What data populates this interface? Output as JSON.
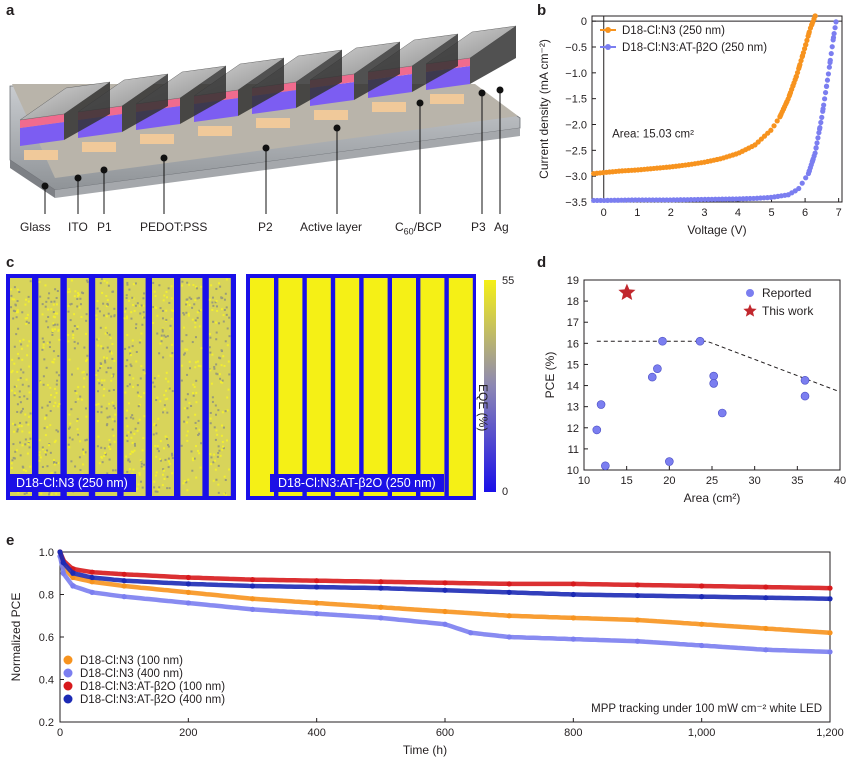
{
  "panel_labels": [
    "a",
    "b",
    "c",
    "d",
    "e"
  ],
  "panel_a": {
    "layers": [
      "Glass",
      "ITO",
      "P1",
      "PEDOT:PSS",
      "P2",
      "Active layer",
      "C60/BCP",
      "P3",
      "Ag"
    ]
  },
  "panel_c": {
    "left_label": "D18-Cl:N3 (250 nm)",
    "right_label": "D18-Cl:N3:AT-β2O (250 nm)",
    "colorbar_title": "EQE (%)",
    "colorbar_max": "55",
    "colorbar_min": "0",
    "colors": {
      "low": "#1a0fe8",
      "high": "#f5f016"
    }
  },
  "chart_data": [
    {
      "panel": "b",
      "type": "line",
      "xlabel": "Voltage (V)",
      "ylabel": "Current density (mA cm⁻²)",
      "xlim": [
        -0.35,
        7.1
      ],
      "ylim": [
        -3.5,
        0.1
      ],
      "xticks": [
        0,
        1,
        2,
        3,
        4,
        5,
        6,
        7
      ],
      "yticks": [
        0,
        -0.5,
        -1.0,
        -1.5,
        -2.0,
        -2.5,
        -3.0,
        -3.5
      ],
      "annotation": "Area: 15.03 cm²",
      "legend_position": "top-left",
      "series": [
        {
          "name": "D18-Cl:N3 (250 nm)",
          "color": "#f7931e",
          "x": [
            -0.3,
            0,
            0.5,
            1,
            1.5,
            2,
            2.5,
            3,
            3.5,
            4,
            4.5,
            5,
            5.25,
            5.5,
            5.75,
            6.0,
            6.15,
            6.3
          ],
          "y": [
            -2.95,
            -2.93,
            -2.9,
            -2.88,
            -2.85,
            -2.82,
            -2.78,
            -2.73,
            -2.66,
            -2.56,
            -2.4,
            -2.1,
            -1.85,
            -1.5,
            -1.05,
            -0.5,
            -0.15,
            0.1
          ]
        },
        {
          "name": "D18-Cl:N3:AT-β2O (250 nm)",
          "color": "#7b7ef0",
          "x": [
            -0.3,
            0,
            1,
            2,
            3,
            4,
            4.5,
            5,
            5.5,
            5.8,
            6.1,
            6.3,
            6.5,
            6.7,
            6.85,
            6.95
          ],
          "y": [
            -3.47,
            -3.47,
            -3.46,
            -3.46,
            -3.45,
            -3.44,
            -3.43,
            -3.41,
            -3.36,
            -3.25,
            -2.95,
            -2.55,
            -1.85,
            -1.0,
            -0.3,
            0.1
          ]
        }
      ]
    },
    {
      "panel": "d",
      "type": "scatter",
      "xlabel": "Area (cm²)",
      "ylabel": "PCE (%)",
      "xlim": [
        10,
        40
      ],
      "ylim": [
        10,
        19
      ],
      "xticks": [
        10,
        15,
        20,
        25,
        30,
        35,
        40
      ],
      "yticks": [
        10,
        11,
        12,
        13,
        14,
        15,
        16,
        17,
        18,
        19
      ],
      "legend_position": "top-right",
      "series": [
        {
          "name": "Reported",
          "color": "#7b7ef0",
          "x": [
            11.5,
            12,
            12.5,
            18,
            18.6,
            19.2,
            20,
            23.6,
            25.2,
            25.2,
            26.2,
            35.9,
            35.9
          ],
          "y": [
            11.9,
            13.1,
            10.2,
            14.4,
            14.8,
            16.1,
            10.4,
            16.1,
            14.45,
            14.1,
            12.7,
            14.25,
            13.5
          ]
        },
        {
          "name": "This work",
          "color": "#c1272d",
          "x": [
            15.03
          ],
          "y": [
            18.4
          ]
        }
      ],
      "trend_line": {
        "x": [
          11.5,
          24.4,
          40
        ],
        "y": [
          16.1,
          16.1,
          13.7
        ]
      }
    },
    {
      "panel": "e",
      "type": "line",
      "xlabel": "Time (h)",
      "ylabel": "Normalized PCE",
      "xlim": [
        0,
        1200
      ],
      "ylim": [
        0.2,
        1.0
      ],
      "xticks": [
        0,
        200,
        400,
        600,
        800,
        1000,
        1200
      ],
      "xticklabels": [
        "0",
        "200",
        "400",
        "600",
        "800",
        "1,000",
        "1,200"
      ],
      "yticks": [
        0.2,
        0.4,
        0.6,
        0.8,
        1.0
      ],
      "annotation": "MPP tracking under 100 mW cm⁻² white LED",
      "legend_position": "bottom-left",
      "series": [
        {
          "name": "D18-Cl:N3 (100 nm)",
          "color": "#f7931e",
          "x": [
            0,
            5,
            20,
            50,
            100,
            200,
            300,
            400,
            500,
            600,
            700,
            800,
            900,
            1000,
            1100,
            1200
          ],
          "y": [
            1.0,
            0.93,
            0.88,
            0.86,
            0.84,
            0.81,
            0.78,
            0.76,
            0.74,
            0.72,
            0.7,
            0.69,
            0.68,
            0.66,
            0.64,
            0.62
          ]
        },
        {
          "name": "D18-Cl:N3 (400 nm)",
          "color": "#7b7ef0",
          "x": [
            0,
            5,
            20,
            50,
            100,
            200,
            300,
            400,
            500,
            600,
            640,
            700,
            800,
            900,
            1000,
            1100,
            1200
          ],
          "y": [
            0.98,
            0.9,
            0.84,
            0.81,
            0.79,
            0.76,
            0.73,
            0.71,
            0.69,
            0.66,
            0.62,
            0.6,
            0.59,
            0.58,
            0.56,
            0.54,
            0.53
          ]
        },
        {
          "name": "D18-Cl:N3:AT-β2O (100 nm)",
          "color": "#d7191c",
          "x": [
            0,
            5,
            20,
            50,
            100,
            200,
            300,
            400,
            500,
            600,
            700,
            800,
            900,
            1000,
            1100,
            1200
          ],
          "y": [
            1.0,
            0.96,
            0.92,
            0.905,
            0.895,
            0.88,
            0.87,
            0.865,
            0.86,
            0.855,
            0.85,
            0.85,
            0.845,
            0.84,
            0.835,
            0.83
          ]
        },
        {
          "name": "D18-Cl:N3:AT-β2O (400 nm)",
          "color": "#1c2ab5",
          "x": [
            0,
            5,
            20,
            50,
            100,
            200,
            300,
            400,
            500,
            600,
            700,
            800,
            900,
            1000,
            1100,
            1200
          ],
          "y": [
            1.0,
            0.95,
            0.9,
            0.88,
            0.865,
            0.85,
            0.84,
            0.835,
            0.83,
            0.82,
            0.81,
            0.8,
            0.795,
            0.79,
            0.785,
            0.78
          ]
        }
      ]
    }
  ]
}
